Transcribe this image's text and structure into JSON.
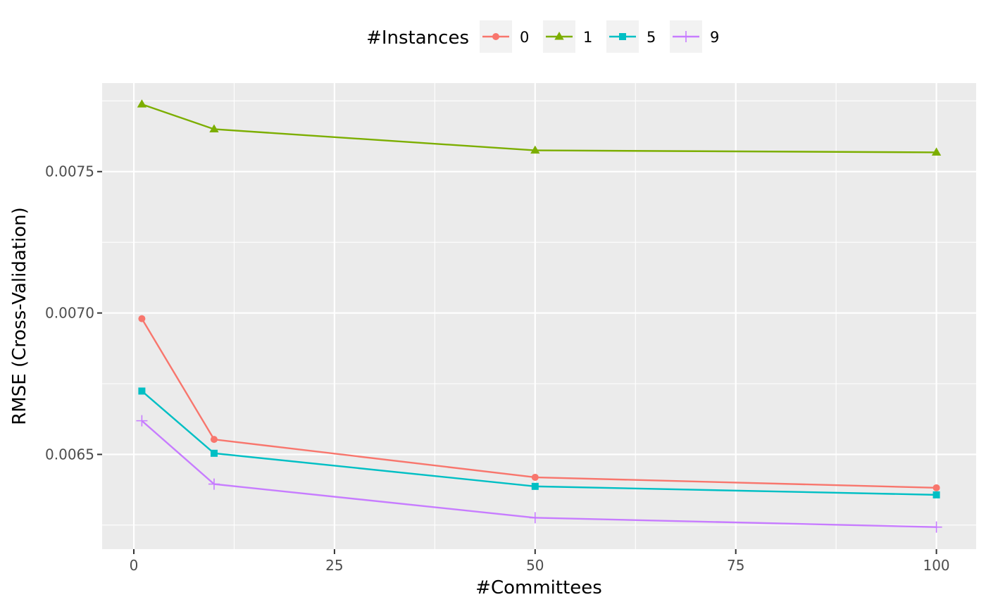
{
  "chart_data": {
    "type": "line",
    "xlabel": "#Committees",
    "ylabel": "RMSE (Cross-Validation)",
    "x": [
      1,
      10,
      50,
      100
    ],
    "xlim": [
      -3.95,
      104.95
    ],
    "ylim": [
      0.006165,
      0.007813
    ],
    "x_ticks": [
      0,
      25,
      50,
      75,
      100
    ],
    "x_tick_labels": [
      "0",
      "25",
      "50",
      "75",
      "100"
    ],
    "x_minor_ticks": [
      12.5,
      37.5,
      62.5,
      87.5
    ],
    "y_ticks": [
      0.0065,
      0.007,
      0.0075
    ],
    "y_tick_labels": [
      "0.0065",
      "0.0070",
      "0.0075"
    ],
    "y_minor_ticks": [
      0.00625,
      0.00675,
      0.00725,
      0.00775
    ],
    "grid": true,
    "panel_background": "#ebebeb",
    "legend": {
      "title": "#Instances",
      "position": "top"
    },
    "series": [
      {
        "name": "0",
        "color": "#F8766D",
        "marker": "circle",
        "values": [
          0.00698,
          0.006553,
          0.006419,
          0.006382
        ]
      },
      {
        "name": "1",
        "color": "#7CAE00",
        "marker": "triangle",
        "values": [
          0.007738,
          0.00765,
          0.007575,
          0.007568
        ]
      },
      {
        "name": "5",
        "color": "#00BFC4",
        "marker": "square",
        "values": [
          0.006724,
          0.006504,
          0.006387,
          0.006357
        ]
      },
      {
        "name": "9",
        "color": "#C77CFF",
        "marker": "plus",
        "values": [
          0.006619,
          0.006395,
          0.006276,
          0.006243
        ]
      }
    ]
  }
}
